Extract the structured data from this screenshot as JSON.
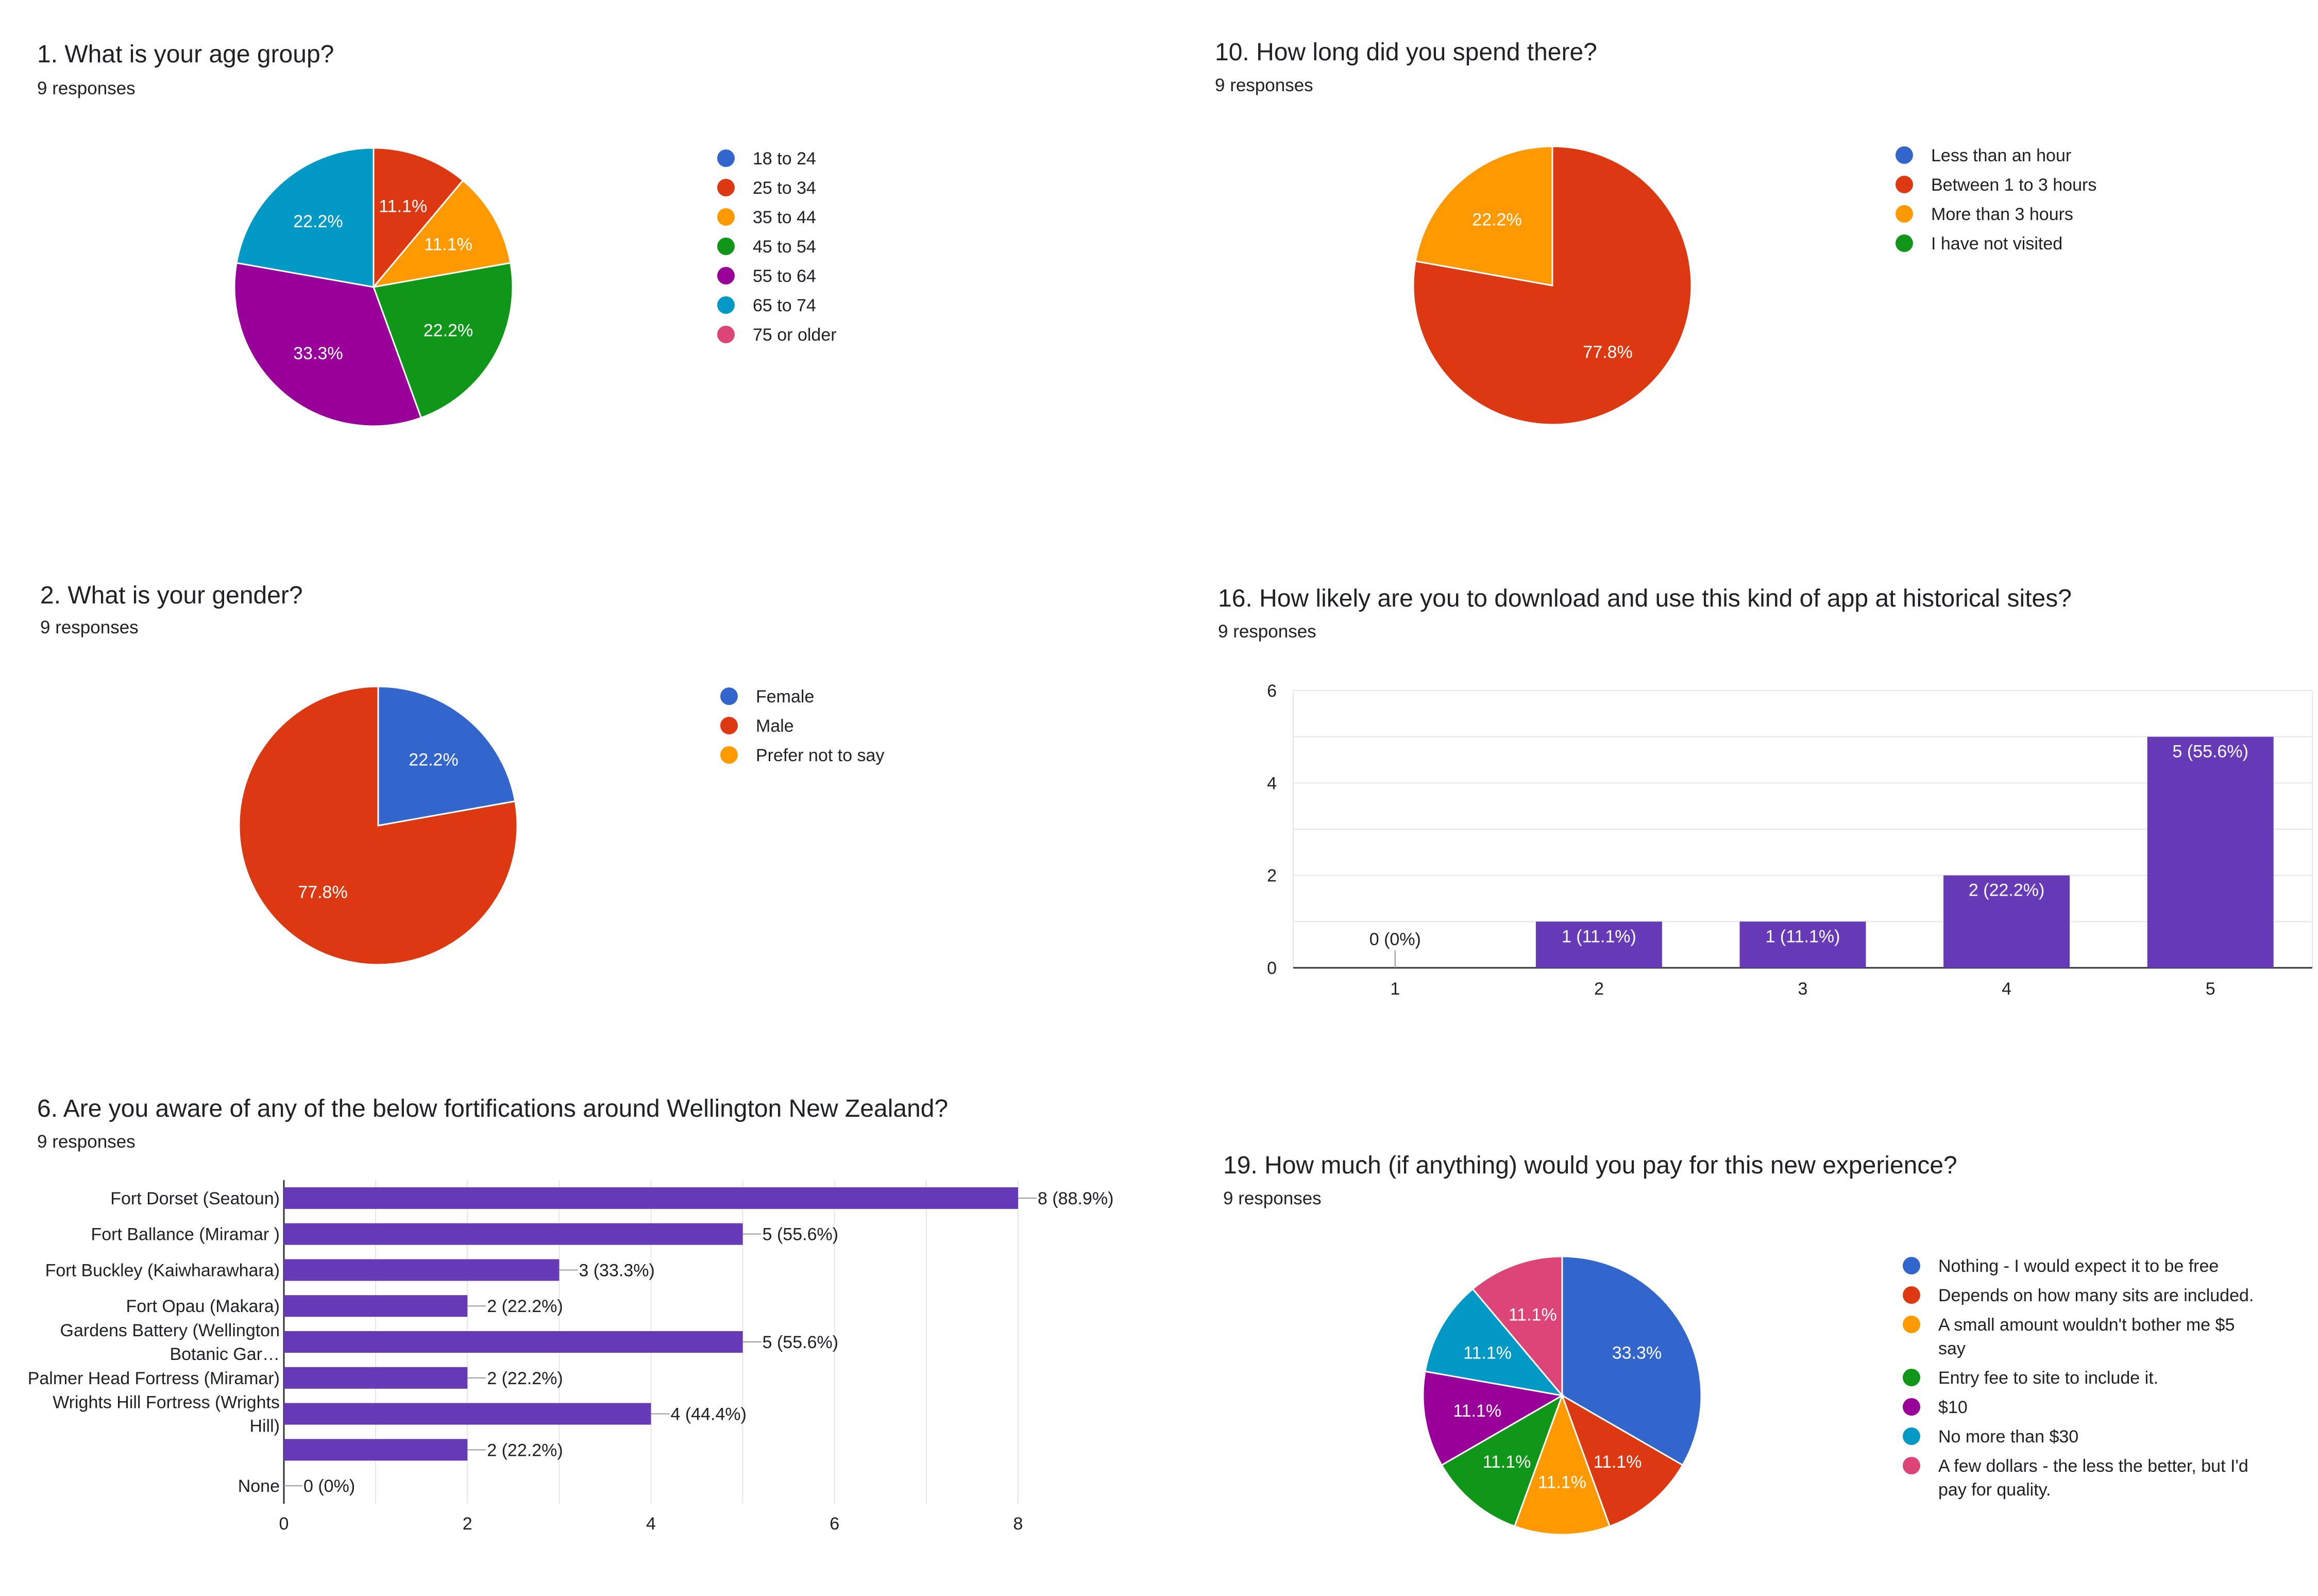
{
  "colors": {
    "blue": "#3366cc",
    "red": "#dc3912",
    "orange": "#ff9900",
    "green": "#109618",
    "purple": "#990099",
    "teal": "#0099c6",
    "pink": "#dd4477",
    "bar": "#673ab7",
    "grid": "#e6e6e6",
    "axis": "#333333"
  },
  "chart_data": [
    {
      "type": "pie",
      "title": "1. What is your age group?",
      "subtitle": "9 responses",
      "slices": [
        {
          "label": "18 to 24",
          "value": 0,
          "percent": "0%",
          "color": "#3366cc"
        },
        {
          "label": "25 to 34",
          "value": 11.1,
          "percent": "11.1%",
          "color": "#dc3912"
        },
        {
          "label": "35 to 44",
          "value": 11.1,
          "percent": "11.1%",
          "color": "#ff9900"
        },
        {
          "label": "45 to 54",
          "value": 22.2,
          "percent": "22.2%",
          "color": "#109618"
        },
        {
          "label": "55 to 64",
          "value": 33.3,
          "percent": "33.3%",
          "color": "#990099"
        },
        {
          "label": "65 to 74",
          "value": 22.2,
          "percent": "22.2%",
          "color": "#0099c6"
        },
        {
          "label": "75 or older",
          "value": 0,
          "percent": "0%",
          "color": "#dd4477"
        }
      ],
      "legend": "right"
    },
    {
      "type": "pie",
      "title": "10. How long did you spend there?",
      "subtitle": "9 responses",
      "slices": [
        {
          "label": "Less than an hour",
          "value": 0,
          "percent": "0%",
          "color": "#3366cc"
        },
        {
          "label": "Between 1 to 3 hours",
          "value": 77.8,
          "percent": "77.8%",
          "color": "#dc3912"
        },
        {
          "label": "More than 3 hours",
          "value": 22.2,
          "percent": "22.2%",
          "color": "#ff9900"
        },
        {
          "label": "I have not visited",
          "value": 0,
          "percent": "0%",
          "color": "#109618"
        }
      ],
      "legend": "right"
    },
    {
      "type": "pie",
      "title": "2. What is your gender?",
      "subtitle": "9 responses",
      "slices": [
        {
          "label": "Female",
          "value": 22.2,
          "percent": "22.2%",
          "color": "#3366cc"
        },
        {
          "label": "Male",
          "value": 77.8,
          "percent": "77.8%",
          "color": "#dc3912"
        },
        {
          "label": "Prefer not to say",
          "value": 0,
          "percent": "0%",
          "color": "#ff9900"
        }
      ],
      "legend": "right"
    },
    {
      "type": "bar",
      "title": "16. How likely are you to download and use this kind of app at historical sites?",
      "subtitle": "9 responses",
      "categories": [
        "1",
        "2",
        "3",
        "4",
        "5"
      ],
      "values": [
        0,
        1,
        1,
        2,
        5
      ],
      "value_labels": [
        "0 (0%)",
        "1 (11.1%)",
        "1 (11.1%)",
        "2 (22.2%)",
        "5 (55.6%)"
      ],
      "ylim": [
        0,
        6
      ],
      "yticks": [
        0,
        2,
        4,
        6
      ],
      "grid": true
    },
    {
      "type": "bar",
      "orientation": "horizontal",
      "title": "6. Are you aware of any of the below fortifications around Wellington New Zealand?",
      "subtitle": "9 responses",
      "categories": [
        [
          "Fort Dorset (Seatoun)"
        ],
        [
          "Fort Ballance (Miramar )"
        ],
        [
          "Fort Buckley (Kaiwharawhara)"
        ],
        [
          "Fort Opau (Makara)"
        ],
        [
          "Gardens Battery (Wellington",
          "Botanic Gar…"
        ],
        [
          "Palmer Head Fortress (Miramar)"
        ],
        [
          "Wrights Hill Fortress (Wrights",
          "Hill)"
        ],
        [],
        [
          "None"
        ]
      ],
      "values": [
        8,
        5,
        3,
        2,
        5,
        2,
        4,
        2,
        0
      ],
      "value_labels": [
        "8 (88.9%)",
        "5 (55.6%)",
        "3 (33.3%)",
        "2 (22.2%)",
        "5 (55.6%)",
        "2 (22.2%)",
        "4 (44.4%)",
        "2 (22.2%)",
        "0 (0%)"
      ],
      "xlim": [
        0,
        8
      ],
      "xticks": [
        0,
        2,
        4,
        6,
        8
      ],
      "grid": true
    },
    {
      "type": "pie",
      "title": "19. How much (if anything) would you pay for this new experience?",
      "subtitle": "9 responses",
      "slices": [
        {
          "label": [
            "Nothing - I would expect it to be free"
          ],
          "value": 33.3,
          "percent": "33.3%",
          "color": "#3366cc"
        },
        {
          "label": [
            "Depends on how many sits are included."
          ],
          "value": 11.1,
          "percent": "11.1%",
          "color": "#dc3912"
        },
        {
          "label": [
            "A small amount wouldn't bother me $5",
            "say"
          ],
          "value": 11.1,
          "percent": "11.1%",
          "color": "#ff9900"
        },
        {
          "label": [
            "Entry fee to site to include it."
          ],
          "value": 11.1,
          "percent": "11.1%",
          "color": "#109618"
        },
        {
          "label": [
            "$10"
          ],
          "value": 11.1,
          "percent": "11.1%",
          "color": "#990099"
        },
        {
          "label": [
            "No more than $30"
          ],
          "value": 11.1,
          "percent": "11.1%",
          "color": "#0099c6"
        },
        {
          "label": [
            "A few dollars - the less the better, but I'd",
            "pay for quality."
          ],
          "value": 11.1,
          "percent": "11.1%",
          "color": "#dd4477"
        }
      ],
      "legend": "right"
    }
  ]
}
